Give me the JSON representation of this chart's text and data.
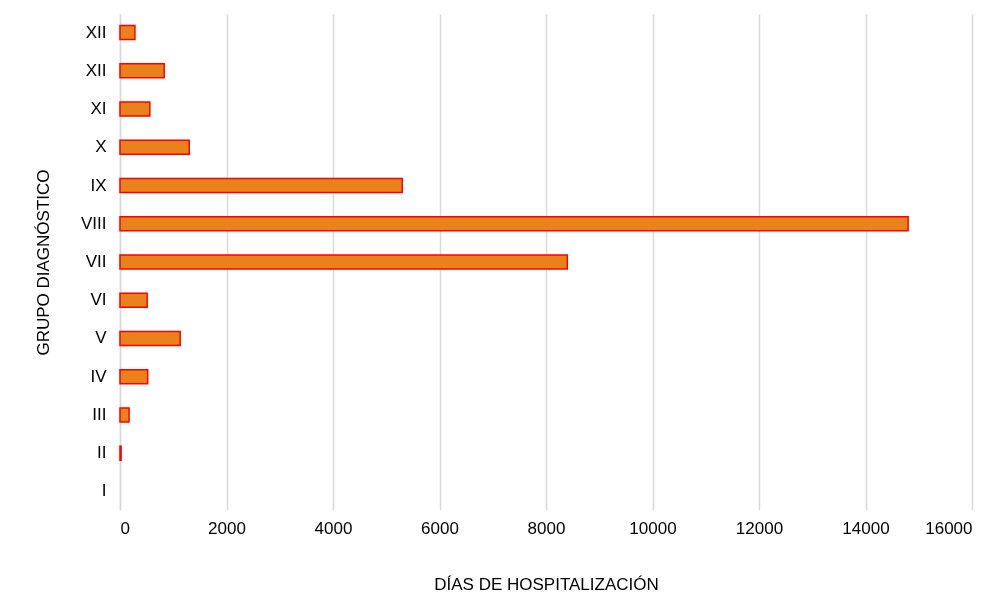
{
  "chart_data": {
    "type": "bar",
    "orientation": "horizontal",
    "xlabel": "DÍAS DE HOSPITALIZACIÓN",
    "ylabel": "GRUPO DIAGNÓSTICO",
    "categories": [
      "XII",
      "XII",
      "XI",
      "X",
      "IX",
      "VIII",
      "VII",
      "VI",
      "V",
      "IV",
      "III",
      "II",
      "I"
    ],
    "values": [
      280,
      830,
      560,
      1300,
      5300,
      14800,
      8400,
      510,
      1130,
      520,
      170,
      20,
      null
    ],
    "color": "#ea821c",
    "xlim": [
      0,
      16000
    ],
    "xticks": [
      0,
      2000,
      4000,
      6000,
      8000,
      10000,
      12000,
      14000,
      16000
    ],
    "grid": "x"
  }
}
